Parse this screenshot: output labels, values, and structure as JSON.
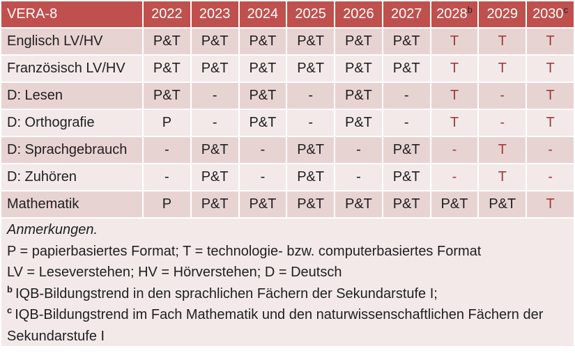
{
  "palette": {
    "header_bg": "#C0504D",
    "header_text": "#FFFFFF",
    "row_dark_bg": "#E8D3D3",
    "row_light_bg": "#F3E9E9",
    "notes_bg": "#F3E9E9",
    "text_black": "#1F1F1F",
    "text_red": "#9E3B3B",
    "gridline": "#FFFFFF"
  },
  "table": {
    "title": "VERA-8",
    "years": [
      {
        "label": "2022",
        "sup": ""
      },
      {
        "label": "2023",
        "sup": ""
      },
      {
        "label": "2024",
        "sup": ""
      },
      {
        "label": "2025",
        "sup": ""
      },
      {
        "label": "2026",
        "sup": ""
      },
      {
        "label": "2027",
        "sup": ""
      },
      {
        "label": "2028",
        "sup": "b"
      },
      {
        "label": "2029",
        "sup": ""
      },
      {
        "label": "2030",
        "sup": "c"
      }
    ],
    "rows": [
      {
        "label": "Englisch LV/HV",
        "values": [
          "P&T",
          "P&T",
          "P&T",
          "P&T",
          "P&T",
          "P&T",
          "T",
          "T",
          "T"
        ],
        "red": [
          false,
          false,
          false,
          false,
          false,
          false,
          true,
          true,
          true
        ]
      },
      {
        "label": "Französisch LV/HV",
        "values": [
          "P&T",
          "P&T",
          "P&T",
          "P&T",
          "P&T",
          "P&T",
          "T",
          "T",
          "T"
        ],
        "red": [
          false,
          false,
          false,
          false,
          false,
          false,
          true,
          true,
          true
        ]
      },
      {
        "label": "D: Lesen",
        "values": [
          "P&T",
          "-",
          "P&T",
          "-",
          "P&T",
          "-",
          "T",
          "-",
          "T"
        ],
        "red": [
          false,
          false,
          false,
          false,
          false,
          false,
          true,
          true,
          true
        ]
      },
      {
        "label": "D: Orthografie",
        "values": [
          "P",
          "-",
          "P&T",
          "-",
          "P&T",
          "-",
          "T",
          "-",
          "T"
        ],
        "red": [
          false,
          false,
          false,
          false,
          false,
          false,
          true,
          true,
          true
        ]
      },
      {
        "label": "D: Sprachgebrauch",
        "values": [
          "-",
          "P&T",
          "-",
          "P&T",
          "-",
          "P&T",
          "-",
          "T",
          "-"
        ],
        "red": [
          false,
          false,
          false,
          false,
          false,
          false,
          true,
          true,
          true
        ]
      },
      {
        "label": "D: Zuhören",
        "values": [
          "-",
          "P&T",
          "-",
          "P&T",
          "-",
          "P&T",
          "-",
          "T",
          "-"
        ],
        "red": [
          false,
          false,
          false,
          false,
          false,
          false,
          true,
          true,
          true
        ]
      },
      {
        "label": "Mathematik",
        "values": [
          "P",
          "P&T",
          "P&T",
          "P&T",
          "P&T",
          "P&T",
          "P&T",
          "P&T",
          "T"
        ],
        "red": [
          false,
          false,
          false,
          false,
          false,
          false,
          false,
          false,
          true
        ]
      }
    ]
  },
  "notes": {
    "title": "Anmerkungen.",
    "line_formats": "P = papierbasiertes Format; T = technologie- bzw. computerbasiertes Format",
    "line_abbreviations": "LV = Leseverstehen; HV = Hörverstehen; D = Deutsch",
    "footnote_b_sup": "b",
    "footnote_b_text": "IQB-Bildungstrend in den sprachlichen Fächern der Sekundarstufe I;",
    "footnote_c_sup": "c",
    "footnote_c_text": "IQB-Bildungstrend im Fach Mathematik und den naturwissenschaftlichen Fächern der Sekundarstufe I"
  }
}
